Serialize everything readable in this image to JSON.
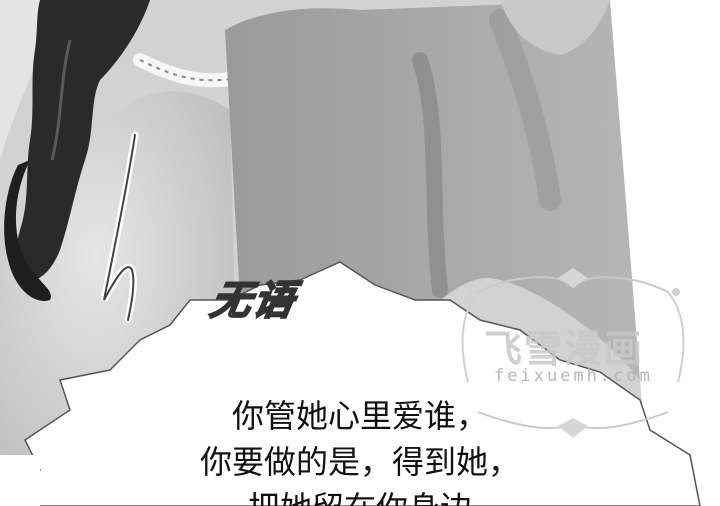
{
  "sfx": {
    "text": "无语"
  },
  "watermark": {
    "title": "飞雪漫画",
    "url": "feixuemh.com"
  },
  "dialogue": {
    "lines": [
      "你管她心里爱谁，",
      "你要做的是，得到她，",
      "把她留在你身边"
    ]
  }
}
